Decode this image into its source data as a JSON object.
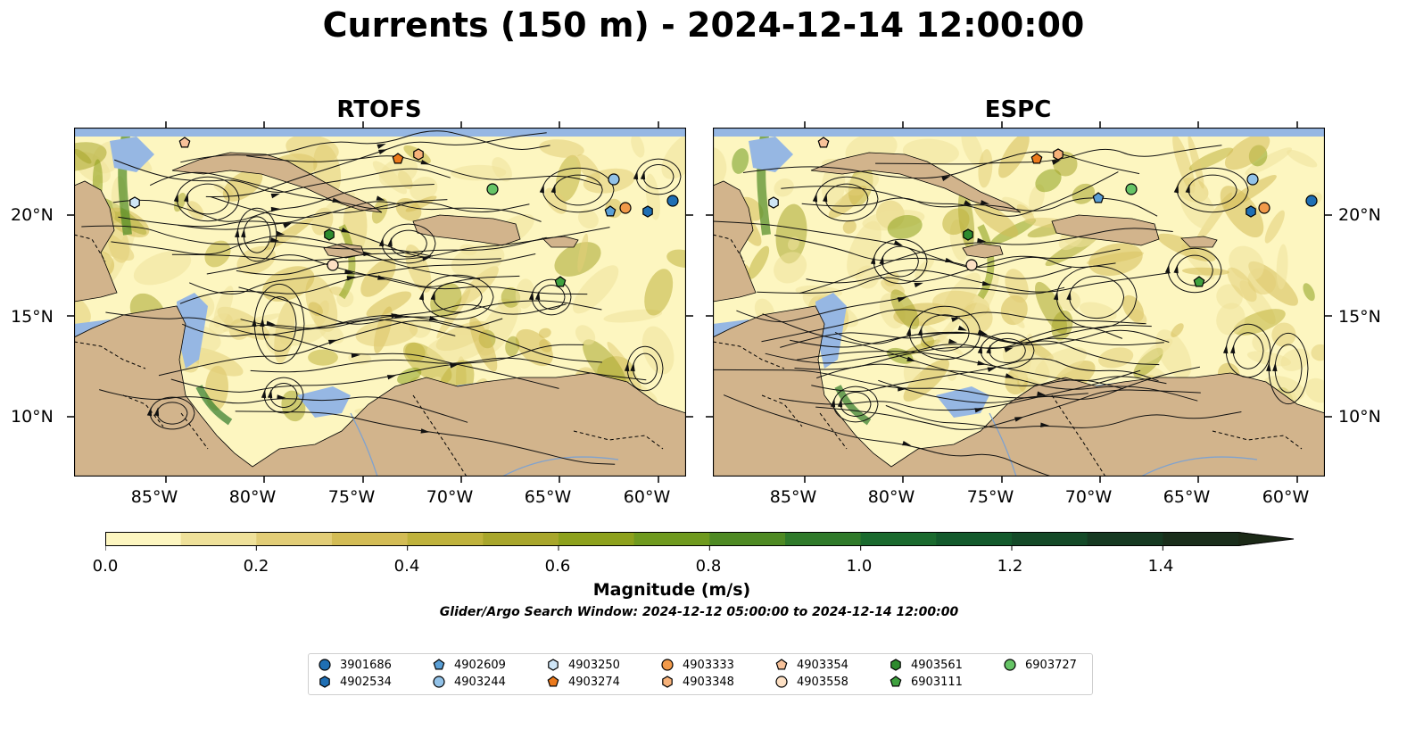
{
  "title": "Currents (150 m) - 2024-12-14 12:00:00",
  "panels": [
    {
      "title": "RTOFS"
    },
    {
      "title": "ESPC"
    }
  ],
  "axes": {
    "lat_labels": [
      "20°N",
      "15°N",
      "10°N"
    ],
    "lon_labels": [
      "85°W",
      "80°W",
      "75°W",
      "70°W",
      "65°W",
      "60°W"
    ]
  },
  "colorbar": {
    "label": "Magnitude (m/s)",
    "ticks": [
      "0.0",
      "0.2",
      "0.4",
      "0.6",
      "0.8",
      "1.0",
      "1.2",
      "1.4"
    ],
    "colors": [
      "#fdf6c0",
      "#efe19a",
      "#e2cd77",
      "#d3bc55",
      "#bfb23c",
      "#a8a62b",
      "#8da11c",
      "#6f9a1e",
      "#4e8a23",
      "#2f7a2a",
      "#1a6a2e",
      "#135a2c",
      "#144a28",
      "#163a22",
      "#1a2e1b",
      "#1b2916"
    ]
  },
  "map_colors": {
    "land": "#d2b48c",
    "water": "#96b7e3",
    "ocean": "#f2e9a6"
  },
  "search_window": "Glider/Argo Search Window: 2024-12-12 05:00:00 to 2024-12-14 12:00:00",
  "legend": [
    {
      "id": "3901686",
      "marker": "circle",
      "color": "#1f6fb4"
    },
    {
      "id": "4902534",
      "marker": "hexagon",
      "color": "#1f6fb4"
    },
    {
      "id": "4902609",
      "marker": "pentagon",
      "color": "#5a9fd6"
    },
    {
      "id": "4903244",
      "marker": "circle",
      "color": "#92c2e8"
    },
    {
      "id": "4903250",
      "marker": "hexagon",
      "color": "#cfe6f7"
    },
    {
      "id": "4903274",
      "marker": "pentagon",
      "color": "#ec7a1c"
    },
    {
      "id": "4903333",
      "marker": "circle",
      "color": "#f29a4a"
    },
    {
      "id": "4903348",
      "marker": "hexagon",
      "color": "#f7b27a"
    },
    {
      "id": "4903354",
      "marker": "pentagon",
      "color": "#f8c29a"
    },
    {
      "id": "4903558",
      "marker": "circle",
      "color": "#fde0c4"
    },
    {
      "id": "4903561",
      "marker": "hexagon",
      "color": "#2e8b2e"
    },
    {
      "id": "6903111",
      "marker": "pentagon",
      "color": "#3fa13f"
    },
    {
      "id": "6903727",
      "marker": "circle",
      "color": "#66c466"
    }
  ]
}
